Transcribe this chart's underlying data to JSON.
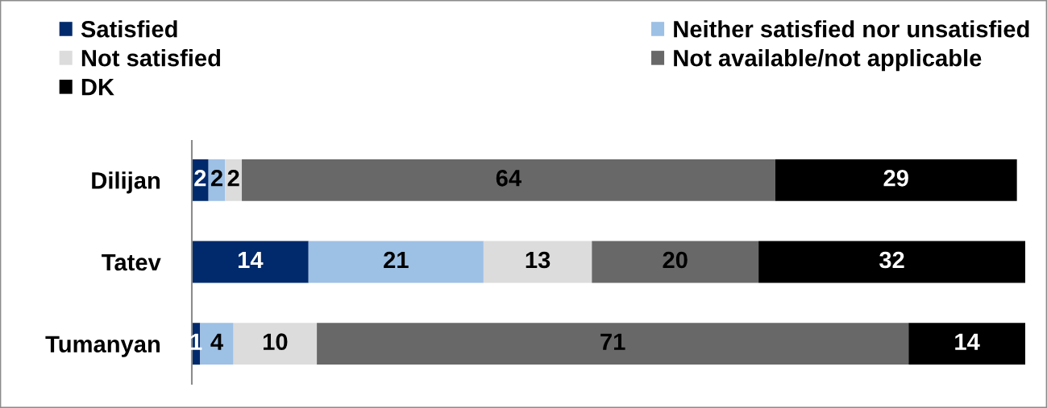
{
  "chart_data": {
    "type": "bar",
    "orientation": "horizontal",
    "stacked": true,
    "categories": [
      "Dilijan",
      "Tatev",
      "Tumanyan"
    ],
    "series": [
      {
        "name": "Satisfied",
        "color": "#002a6c",
        "values": [
          2,
          14,
          1
        ]
      },
      {
        "name": "Neither satisfied nor unsatisfied",
        "color": "#9dc0e5",
        "values": [
          2,
          21,
          4
        ]
      },
      {
        "name": "Not satisfied",
        "color": "#dcdcdc",
        "values": [
          2,
          13,
          10
        ]
      },
      {
        "name": "Not available/not applicable",
        "color": "#686868",
        "values": [
          64,
          20,
          71
        ]
      },
      {
        "name": "DK",
        "color": "#000000",
        "values": [
          29,
          32,
          14
        ]
      }
    ],
    "data_labels": true,
    "legend": "top",
    "tick_labels": "y",
    "grid": false
  }
}
